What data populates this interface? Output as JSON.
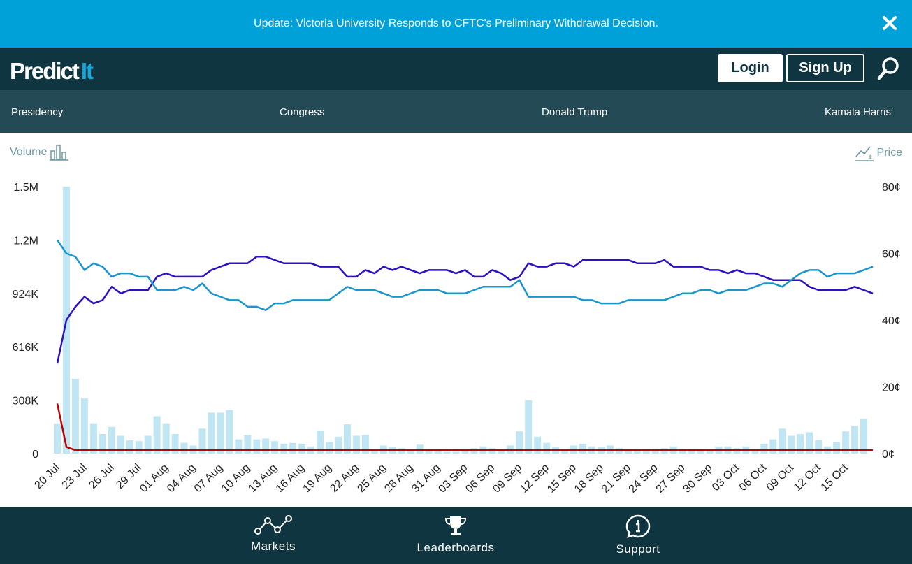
{
  "banner": {
    "text": "Update: Victoria University Responds to CFTC's Preliminary Withdrawal Decision."
  },
  "header": {
    "logo_main": "Predict",
    "logo_accent": "It",
    "login_label": "Login",
    "signup_label": "Sign Up"
  },
  "nav": {
    "items": [
      "Presidency",
      "Congress",
      "Donald Trump",
      "Kamala Harris"
    ]
  },
  "chart_toggles": {
    "volume_label": "Volume",
    "price_label": "Price"
  },
  "colors": {
    "banner": "#00a0d9",
    "header": "#0f3540",
    "nav": "#234a55",
    "volume_bars": "#bfe6f2",
    "series_purple": "#2f0fbf",
    "series_blue": "#1a96cc",
    "series_red": "#c00000"
  },
  "chart_data": {
    "type": "bar+line",
    "x_start": "20 Jul",
    "x_ticks": [
      "20 Jul",
      "23 Jul",
      "26 Jul",
      "29 Jul",
      "01 Aug",
      "04 Aug",
      "07 Aug",
      "10 Aug",
      "13 Aug",
      "16 Aug",
      "19 Aug",
      "22 Aug",
      "25 Aug",
      "28 Aug",
      "31 Aug",
      "03 Sep",
      "06 Sep",
      "09 Sep",
      "12 Sep",
      "15 Sep",
      "18 Sep",
      "21 Sep",
      "24 Sep",
      "27 Sep",
      "30 Sep",
      "03 Oct",
      "06 Oct",
      "09 Oct",
      "12 Oct",
      "15 Oct"
    ],
    "left_axis": {
      "ticks": [
        "1.5M",
        "1.2M",
        "924K",
        "616K",
        "308K",
        "0"
      ],
      "ylim": [
        0,
        1500000
      ]
    },
    "right_axis": {
      "ticks": [
        "80¢",
        "60¢",
        "40¢",
        "20¢",
        "0¢"
      ],
      "ylim": [
        0,
        80
      ]
    },
    "volume": [
      170000,
      1500000,
      420000,
      310000,
      170000,
      110000,
      150000,
      100000,
      75000,
      70000,
      100000,
      210000,
      170000,
      110000,
      60000,
      45000,
      140000,
      230000,
      230000,
      245000,
      80000,
      105000,
      80000,
      85000,
      70000,
      55000,
      60000,
      55000,
      40000,
      130000,
      65000,
      95000,
      165000,
      100000,
      105000,
      20000,
      45000,
      35000,
      30000,
      20000,
      50000,
      20000,
      20000,
      10000,
      10000,
      15000,
      30000,
      40000,
      30000,
      20000,
      45000,
      125000,
      300000,
      95000,
      60000,
      35000,
      20000,
      45000,
      55000,
      40000,
      35000,
      45000,
      30000,
      20000,
      15000,
      25000,
      25000,
      30000,
      40000,
      25000,
      20000,
      20000,
      20000,
      40000,
      40000,
      30000,
      40000,
      25000,
      55000,
      80000,
      140000,
      100000,
      110000,
      120000,
      75000,
      40000,
      65000,
      125000,
      155000,
      195000
    ],
    "series": [
      {
        "values": [
          27,
          40,
          44,
          47,
          45,
          46,
          50,
          48,
          49,
          49,
          49,
          53,
          54,
          53,
          53,
          53,
          53,
          55,
          56,
          57,
          57,
          57,
          59,
          59,
          58,
          57,
          57,
          57,
          57,
          56,
          56,
          56,
          53,
          53,
          55,
          54,
          56,
          55,
          56,
          55,
          54,
          55,
          55,
          55,
          54,
          55,
          53,
          53,
          55,
          54,
          52,
          53,
          57,
          56,
          56,
          57,
          57,
          56,
          58,
          58,
          58,
          58,
          58,
          58,
          57,
          57,
          57,
          58,
          56,
          56,
          56,
          56,
          55,
          55,
          54,
          55,
          54,
          54,
          53,
          52,
          52,
          52,
          52,
          50,
          49,
          49,
          49,
          49,
          50,
          49,
          48
        ]
      },
      {
        "values": [
          64,
          60,
          59,
          55,
          57,
          56,
          53,
          54,
          54,
          53,
          53,
          49,
          49,
          49,
          50,
          49,
          51,
          48,
          47,
          46,
          46,
          44,
          44,
          43,
          45,
          45,
          46,
          46,
          46,
          46,
          46,
          48,
          50,
          49,
          49,
          49,
          48,
          47,
          47,
          48,
          49,
          49,
          49,
          48,
          48,
          48,
          49,
          50,
          50,
          50,
          50,
          52,
          47,
          47,
          47,
          47,
          47,
          47,
          46,
          46,
          45,
          45,
          45,
          46,
          46,
          46,
          46,
          46,
          47,
          48,
          48,
          49,
          49,
          48,
          49,
          49,
          49,
          50,
          51,
          51,
          50,
          52,
          54,
          55,
          55,
          53,
          54,
          54,
          54,
          55,
          56
        ]
      },
      {
        "values": [
          15,
          2,
          1,
          1,
          1,
          1,
          1,
          1,
          1,
          1,
          1,
          1,
          1,
          1,
          1,
          1,
          1,
          1,
          1,
          1,
          1,
          1,
          1,
          1,
          1,
          1,
          1,
          1,
          1,
          1,
          1,
          1,
          1,
          1,
          1,
          1,
          1,
          1,
          1,
          1,
          1,
          1,
          1,
          1,
          1,
          1,
          1,
          1,
          1,
          1,
          1,
          1,
          1,
          1,
          1,
          1,
          1,
          1,
          1,
          1,
          1,
          1,
          1,
          1,
          1,
          1,
          1,
          1,
          1,
          1,
          1,
          1,
          1,
          1,
          1,
          1,
          1,
          1,
          1,
          1,
          1,
          1,
          1,
          1,
          1,
          1,
          1,
          1,
          1,
          1,
          1
        ]
      }
    ]
  },
  "footer": {
    "items": [
      "Markets",
      "Leaderboards",
      "Support"
    ]
  }
}
